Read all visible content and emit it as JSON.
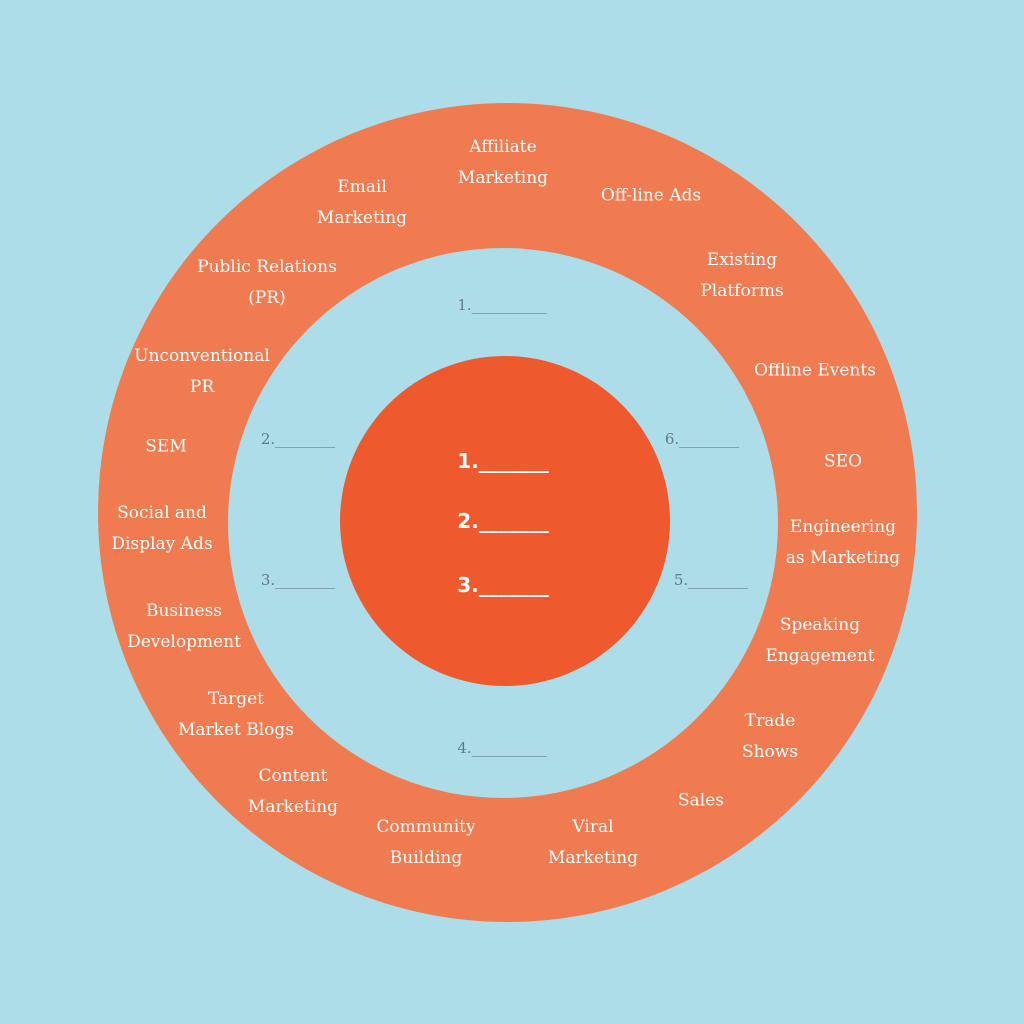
{
  "colors": {
    "background": "#acdde8",
    "outer_ring": "#f07b50",
    "core": "#ee5a2d",
    "outer_text": "#ffffff",
    "middle_text": "#637a8b"
  },
  "outer_ring": {
    "labels": [
      "Affiliate\nMarketing",
      "Off-line Ads",
      "Existing\nPlatforms",
      "Offline Events",
      "SEO",
      "Engineering\nas Marketing",
      "Speaking\nEngagement",
      "Trade\nShows",
      "Sales",
      "Viral\nMarketing",
      "Community\nBuilding",
      "Content\nMarketing",
      "Target\nMarket Blogs",
      "Business\nDevelopment",
      "Social and\nDisplay Ads",
      "SEM",
      "Unconventional\nPR",
      "Public Relations\n(PR)",
      "Email\nMarketing"
    ]
  },
  "middle_ring": {
    "slots": [
      "1.__________",
      "2.________",
      "3.________",
      "4.__________",
      "5.________",
      "6.________"
    ]
  },
  "core": {
    "slots": [
      "1._______",
      "2._______",
      "3._______"
    ]
  }
}
